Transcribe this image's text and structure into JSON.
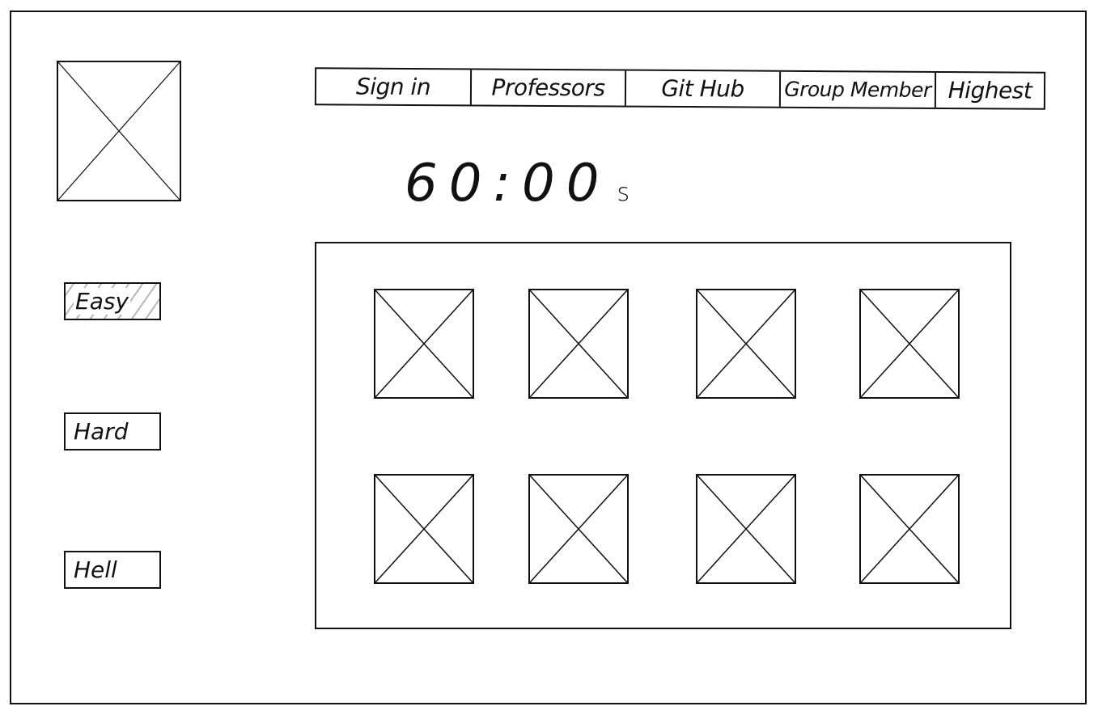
{
  "nav": {
    "items": [
      {
        "label": "Sign in"
      },
      {
        "label": "Professors"
      },
      {
        "label": "Git Hub"
      },
      {
        "label": "Group Member"
      },
      {
        "label": "Highest"
      }
    ]
  },
  "timer": {
    "value": "60:00",
    "unit": "s"
  },
  "difficulty": {
    "options": [
      {
        "label": "Easy",
        "selected": true
      },
      {
        "label": "Hard",
        "selected": false
      },
      {
        "label": "Hell",
        "selected": false
      }
    ]
  },
  "board": {
    "rows": 2,
    "columns": 4,
    "cards": 8
  }
}
